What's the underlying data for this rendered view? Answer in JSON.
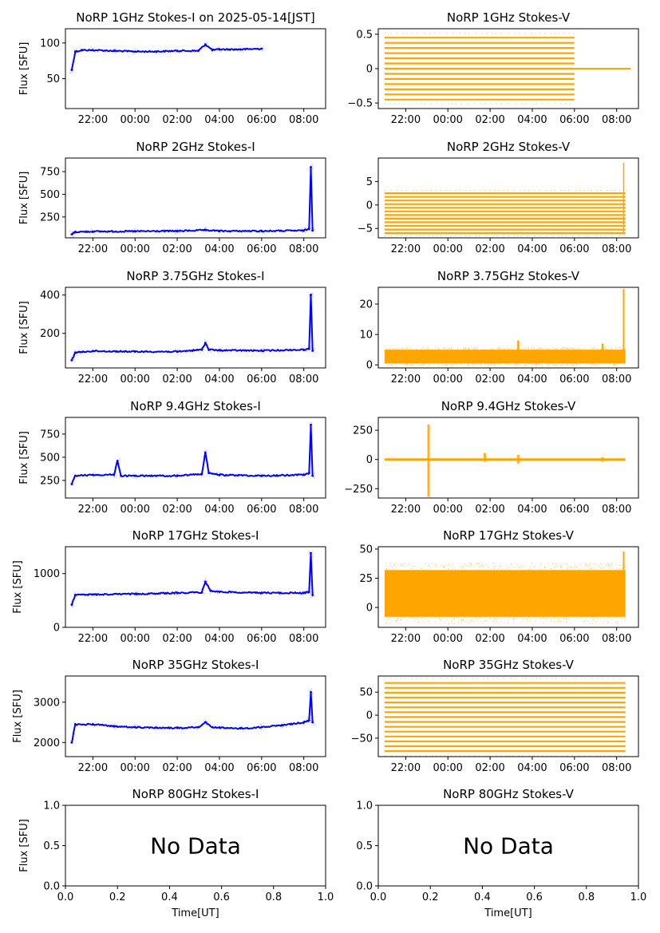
{
  "colors": {
    "stokes_i": "#0000ff",
    "stokes_v": "#ffa500"
  },
  "time_ticks": [
    "22:00",
    "00:00",
    "02:00",
    "04:00",
    "06:00",
    "08:00"
  ],
  "chart_data": [
    {
      "id": "p1i",
      "type": "line",
      "title": "NoRP 1GHz Stokes-I on 2025-05-14[JST]",
      "ylabel": "Flux [SFU]",
      "xlabel": "",
      "ylim": [
        8,
        120
      ],
      "yticks": [
        50,
        100
      ],
      "series": [
        {
          "x": [
            "21:00",
            "21:10",
            "21:30",
            "22:00",
            "23:00",
            "00:00",
            "01:00",
            "02:00",
            "03:00",
            "03:20",
            "03:40",
            "04:00",
            "05:00",
            "06:00"
          ],
          "values": [
            62,
            88,
            90,
            90,
            89,
            88,
            88,
            89,
            89,
            98,
            90,
            91,
            91,
            92
          ]
        }
      ]
    },
    {
      "id": "p1v",
      "type": "scatter",
      "title": "NoRP 1GHz Stokes-V",
      "ylabel": "",
      "xlabel": "",
      "ylim": [
        -0.58,
        0.58
      ],
      "yticks": [
        -0.5,
        0.0,
        0.5
      ],
      "summary": {
        "x_start": "21:00",
        "x_end": "06:00",
        "min": -0.45,
        "max": 0.45,
        "after_end_value": 0.0,
        "after_end_until": "08:40"
      }
    },
    {
      "id": "p2i",
      "type": "line",
      "title": "NoRP 2GHz Stokes-I",
      "ylabel": "Flux [SFU]",
      "xlabel": "",
      "ylim": [
        20,
        900
      ],
      "yticks": [
        250,
        500,
        750
      ],
      "series": [
        {
          "x": [
            "21:00",
            "21:10",
            "22:00",
            "00:00",
            "02:00",
            "03:20",
            "04:00",
            "06:00",
            "08:00",
            "08:15",
            "08:20",
            "08:25"
          ],
          "values": [
            60,
            85,
            90,
            92,
            95,
            105,
            95,
            95,
            100,
            120,
            800,
            100
          ]
        }
      ]
    },
    {
      "id": "p2v",
      "type": "scatter",
      "title": "NoRP 2GHz Stokes-V",
      "ylabel": "",
      "xlabel": "",
      "ylim": [
        -7,
        10
      ],
      "yticks": [
        -5,
        0,
        5
      ],
      "summary": {
        "x_start": "21:00",
        "x_end": "08:25",
        "min": -6,
        "max": 2.5,
        "spike_at": "08:20",
        "spike_value": 9
      }
    },
    {
      "id": "p3i",
      "type": "line",
      "title": "NoRP 3.75GHz Stokes-I",
      "ylabel": "Flux [SFU]",
      "xlabel": "",
      "ylim": [
        20,
        440
      ],
      "yticks": [
        200,
        400
      ],
      "series": [
        {
          "x": [
            "21:00",
            "21:10",
            "22:00",
            "00:00",
            "02:00",
            "03:10",
            "03:20",
            "03:30",
            "04:00",
            "06:00",
            "08:00",
            "08:15",
            "08:20",
            "08:25"
          ],
          "values": [
            60,
            100,
            108,
            105,
            105,
            115,
            150,
            115,
            112,
            110,
            115,
            120,
            400,
            110
          ]
        }
      ]
    },
    {
      "id": "p3v",
      "type": "scatter",
      "title": "NoRP 3.75GHz Stokes-V",
      "ylabel": "",
      "xlabel": "",
      "ylim": [
        -1,
        25.5
      ],
      "yticks": [
        0,
        10,
        20
      ],
      "summary": {
        "x_start": "21:00",
        "x_end": "08:25",
        "min": 0.5,
        "max": 5,
        "bumps": [
          {
            "x": "03:20",
            "value": 8
          },
          {
            "x": "07:20",
            "value": 7
          }
        ],
        "spike_at": "08:20",
        "spike_value": 25
      }
    },
    {
      "id": "p4i",
      "type": "line",
      "title": "NoRP 9.4GHz Stokes-I",
      "ylabel": "Flux [SFU]",
      "xlabel": "",
      "ylim": [
        60,
        930
      ],
      "yticks": [
        250,
        500,
        750
      ],
      "series": [
        {
          "x": [
            "21:00",
            "21:10",
            "22:00",
            "23:00",
            "23:10",
            "23:20",
            "00:00",
            "02:00",
            "03:10",
            "03:20",
            "03:30",
            "04:00",
            "06:00",
            "08:00",
            "08:15",
            "08:20",
            "08:25"
          ],
          "values": [
            210,
            300,
            310,
            310,
            460,
            300,
            300,
            300,
            320,
            550,
            330,
            310,
            300,
            310,
            330,
            850,
            300
          ]
        }
      ]
    },
    {
      "id": "p4v",
      "type": "scatter",
      "title": "NoRP 9.4GHz Stokes-V",
      "ylabel": "",
      "xlabel": "",
      "ylim": [
        -330,
        360
      ],
      "yticks": [
        -250,
        0,
        250
      ],
      "summary": {
        "x_start": "21:00",
        "x_end": "08:25",
        "baseline": 0,
        "bursts": [
          {
            "x": "23:05",
            "min": -320,
            "max": 300
          },
          {
            "x": "01:45",
            "min": -20,
            "max": 55
          },
          {
            "x": "03:20",
            "min": -35,
            "max": 40
          },
          {
            "x": "07:20",
            "min": -20,
            "max": 20
          }
        ]
      }
    },
    {
      "id": "p5i",
      "type": "line",
      "title": "NoRP 17GHz Stokes-I",
      "ylabel": "Flux [SFU]",
      "xlabel": "",
      "ylim": [
        0,
        1500
      ],
      "yticks": [
        0,
        1000
      ],
      "series": [
        {
          "x": [
            "21:00",
            "21:10",
            "22:00",
            "00:00",
            "02:00",
            "03:10",
            "03:20",
            "03:35",
            "04:00",
            "06:00",
            "08:00",
            "08:15",
            "08:20",
            "08:25"
          ],
          "values": [
            420,
            600,
            610,
            620,
            640,
            650,
            850,
            680,
            660,
            640,
            640,
            660,
            1380,
            600
          ]
        }
      ]
    },
    {
      "id": "p5v",
      "type": "scatter",
      "title": "NoRP 17GHz Stokes-V",
      "ylabel": "",
      "xlabel": "",
      "ylim": [
        -17,
        52
      ],
      "yticks": [
        0,
        25,
        50
      ],
      "summary": {
        "x_start": "21:00",
        "x_end": "08:25",
        "min": -8,
        "max": 32,
        "spike_at": "08:20",
        "spike_value": 48
      }
    },
    {
      "id": "p6i",
      "type": "line",
      "title": "NoRP 35GHz Stokes-I",
      "ylabel": "Flux [SFU]",
      "xlabel": "",
      "ylim": [
        1650,
        3650
      ],
      "yticks": [
        2000,
        3000
      ],
      "series": [
        {
          "x": [
            "21:00",
            "21:10",
            "22:00",
            "23:00",
            "00:00",
            "01:00",
            "02:00",
            "03:00",
            "03:20",
            "03:40",
            "04:00",
            "05:00",
            "06:00",
            "07:00",
            "08:00",
            "08:15",
            "08:20",
            "08:25"
          ],
          "values": [
            2000,
            2450,
            2450,
            2400,
            2380,
            2370,
            2360,
            2380,
            2500,
            2380,
            2370,
            2350,
            2380,
            2430,
            2500,
            2550,
            3250,
            2500
          ]
        }
      ]
    },
    {
      "id": "p6v",
      "type": "scatter",
      "title": "NoRP 35GHz Stokes-V",
      "ylabel": "",
      "xlabel": "",
      "ylim": [
        -90,
        85
      ],
      "yticks": [
        -50,
        0,
        50
      ],
      "summary": {
        "x_start": "21:00",
        "x_end": "08:25",
        "min": -78,
        "max": 70
      }
    },
    {
      "id": "p7i",
      "type": "empty",
      "title": "NoRP 80GHz Stokes-I",
      "ylabel": "Flux [SFU]",
      "xlabel": "Time[UT]",
      "ylim": [
        0,
        1
      ],
      "xlim": [
        0,
        1
      ],
      "yticks": [
        "0.0",
        "0.5",
        "1.0"
      ],
      "xticks": [
        "0.0",
        "0.2",
        "0.4",
        "0.6",
        "0.8",
        "1.0"
      ],
      "annotation": "No Data"
    },
    {
      "id": "p7v",
      "type": "empty",
      "title": "NoRP 80GHz Stokes-V",
      "ylabel": "",
      "xlabel": "Time[UT]",
      "ylim": [
        0,
        1
      ],
      "xlim": [
        0,
        1
      ],
      "yticks": [
        "0.0",
        "0.5",
        "1.0"
      ],
      "xticks": [
        "0.0",
        "0.2",
        "0.4",
        "0.6",
        "0.8",
        "1.0"
      ],
      "annotation": "No Data"
    }
  ]
}
